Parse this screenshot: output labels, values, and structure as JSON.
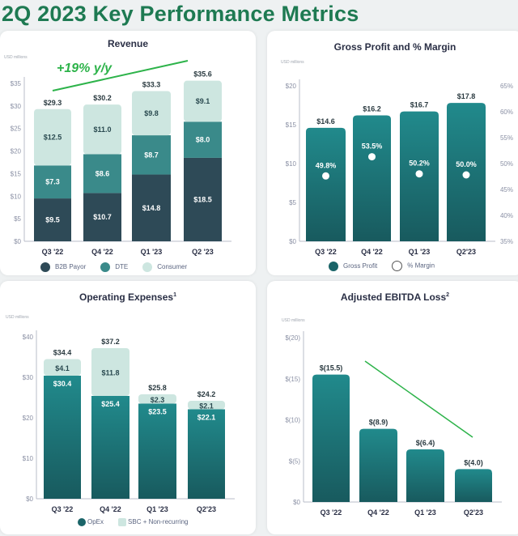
{
  "page_title": "2Q 2023 Key Performance Metrics",
  "colors": {
    "title": "#1e7a52",
    "b2b": "#2e4a57",
    "dte": "#3a8a8a",
    "consumer": "#cde6e0",
    "teal": "#1f7f82",
    "trend": "#2db34a"
  },
  "chart_data": [
    {
      "id": "revenue",
      "type": "bar",
      "stacked": true,
      "title": "Revenue",
      "unit_label": "USD millions",
      "categories": [
        "Q3 '22",
        "Q4 '22",
        "Q1 '23",
        "Q2 '23"
      ],
      "series": [
        {
          "name": "B2B Payor",
          "values": [
            9.5,
            10.7,
            14.8,
            18.5
          ],
          "labels": [
            "$9.5",
            "$10.7",
            "$14.8",
            "$18.5"
          ]
        },
        {
          "name": "DTE",
          "values": [
            7.3,
            8.6,
            8.7,
            8.0
          ],
          "labels": [
            "$7.3",
            "$8.6",
            "$8.7",
            "$8.0"
          ]
        },
        {
          "name": "Consumer",
          "values": [
            12.5,
            11.0,
            9.8,
            9.1
          ],
          "labels": [
            "$12.5",
            "$11.0",
            "$9.8",
            "$9.1"
          ]
        }
      ],
      "totals": [
        "$29.3",
        "$30.2",
        "$33.3",
        "$35.6"
      ],
      "ylim": [
        0,
        35
      ],
      "yticks": [
        "$0",
        "$5",
        "$10",
        "$15",
        "$20",
        "$25",
        "$30",
        "$35"
      ],
      "annotation": "+19% y/y",
      "trend_line": "up",
      "legend": "bottom",
      "grid": false
    },
    {
      "id": "gross_profit",
      "type": "bar",
      "title": "Gross Profit and % Margin",
      "unit_label": "USD millions",
      "categories": [
        "Q3 '22",
        "Q4 '22",
        "Q1 '23",
        "Q2'23"
      ],
      "series": [
        {
          "name": "Gross Profit",
          "values": [
            14.6,
            16.2,
            16.7,
            17.8
          ],
          "labels": [
            "$14.6",
            "$16.2",
            "$16.7",
            "$17.8"
          ]
        },
        {
          "name": "% Margin",
          "type": "scatter",
          "axis": "right",
          "values": [
            49.8,
            53.5,
            50.2,
            50.0
          ],
          "labels": [
            "49.8%",
            "53.5%",
            "50.2%",
            "50.0%"
          ]
        }
      ],
      "ylim": [
        0,
        20
      ],
      "yticks": [
        "$0",
        "$5",
        "$10",
        "$15",
        "$20"
      ],
      "y2lim": [
        35,
        65
      ],
      "y2ticks": [
        "35%",
        "40%",
        "45%",
        "50%",
        "55%",
        "60%",
        "65%"
      ],
      "legend": "bottom",
      "grid": false
    },
    {
      "id": "opex",
      "type": "bar",
      "stacked": true,
      "title": "Operating Expenses",
      "title_sup": "1",
      "unit_label": "USD millions",
      "categories": [
        "Q3 '22",
        "Q4 '22",
        "Q1 '23",
        "Q2'23"
      ],
      "series": [
        {
          "name": "OpEx",
          "values": [
            30.4,
            25.4,
            23.5,
            22.1
          ],
          "labels": [
            "$30.4",
            "$25.4",
            "$23.5",
            "$22.1"
          ]
        },
        {
          "name": "SBC + Non-recurring",
          "values": [
            4.1,
            11.8,
            2.3,
            2.1
          ],
          "labels": [
            "$4.1",
            "$11.8",
            "$2.3",
            "$2.1"
          ]
        }
      ],
      "totals": [
        "$34.4",
        "$37.2",
        "$25.8",
        "$24.2"
      ],
      "ylim": [
        0,
        40
      ],
      "yticks": [
        "$0",
        "$10",
        "$20",
        "$30",
        "$40"
      ],
      "legend": "bottom",
      "grid": false
    },
    {
      "id": "ebitda",
      "type": "bar",
      "title": "Adjusted EBITDA Loss",
      "title_sup": "2",
      "unit_label": "USD millions",
      "categories": [
        "Q3 '22",
        "Q4 '22",
        "Q1 '23",
        "Q2'23"
      ],
      "series": [
        {
          "name": "Adjusted EBITDA Loss",
          "values": [
            -15.5,
            -8.9,
            -6.4,
            -4.0
          ],
          "labels": [
            "$(15.5)",
            "$(8.9)",
            "$(6.4)",
            "$(4.0)"
          ]
        }
      ],
      "ylim": [
        0,
        -20
      ],
      "yticks": [
        "$0",
        "$(5)",
        "$(10)",
        "$(15)",
        "$(20)"
      ],
      "trend_line": "down",
      "grid": false
    }
  ]
}
